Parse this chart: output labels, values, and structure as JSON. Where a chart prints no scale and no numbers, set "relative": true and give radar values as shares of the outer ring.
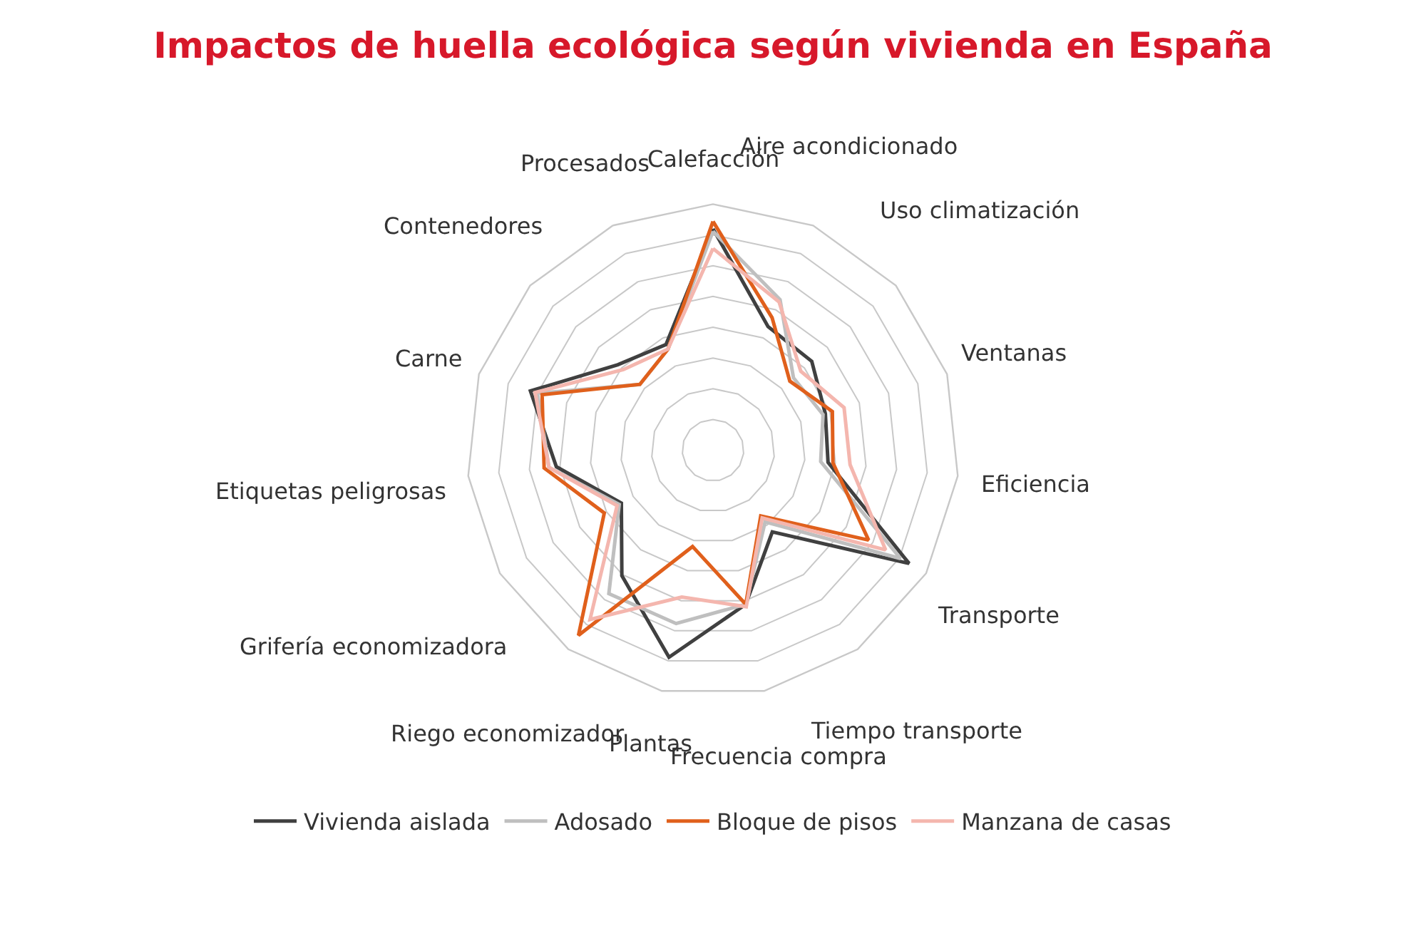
{
  "chart_data": {
    "type": "radar",
    "title": "Impactos de huella ecológica según vivienda en España",
    "relative": true,
    "grid": true,
    "legend": "bottom",
    "marker": "none",
    "line_style": "solid",
    "categories": [
      "Calefacción",
      "Aire acondicionado",
      "Uso climatización",
      "Ventanas",
      "Eficiencia",
      "Transporte",
      "Tiempo transporte",
      "Frecuencia compra",
      "Plantas",
      "Riego economizador",
      "Grifería economizadora",
      "Etiquetas peligrosas",
      "Carne",
      "Contenedores",
      "Procesados"
    ],
    "series": [
      {
        "name": "Vivienda aislada",
        "color": "#404040",
        "values": [
          0.9,
          0.55,
          0.54,
          0.48,
          0.47,
          0.92,
          0.41,
          0.64,
          0.86,
          0.63,
          0.43,
          0.64,
          0.78,
          0.52,
          0.47
        ]
      },
      {
        "name": "Adosado",
        "color": "#bfbfbf",
        "values": [
          0.89,
          0.67,
          0.44,
          0.47,
          0.44,
          0.88,
          0.36,
          0.64,
          0.72,
          0.72,
          0.44,
          0.67,
          0.75,
          0.4,
          0.45
        ]
      },
      {
        "name": "Bloque de pisos",
        "color": "#e0601c",
        "values": [
          0.93,
          0.59,
          0.42,
          0.51,
          0.49,
          0.73,
          0.33,
          0.64,
          0.4,
          0.93,
          0.51,
          0.69,
          0.73,
          0.4,
          0.45
        ]
      },
      {
        "name": "Manzana de casas",
        "color": "#f4b6ae",
        "values": [
          0.82,
          0.66,
          0.48,
          0.56,
          0.56,
          0.81,
          0.34,
          0.65,
          0.61,
          0.85,
          0.45,
          0.67,
          0.76,
          0.49,
          0.45
        ]
      }
    ]
  }
}
